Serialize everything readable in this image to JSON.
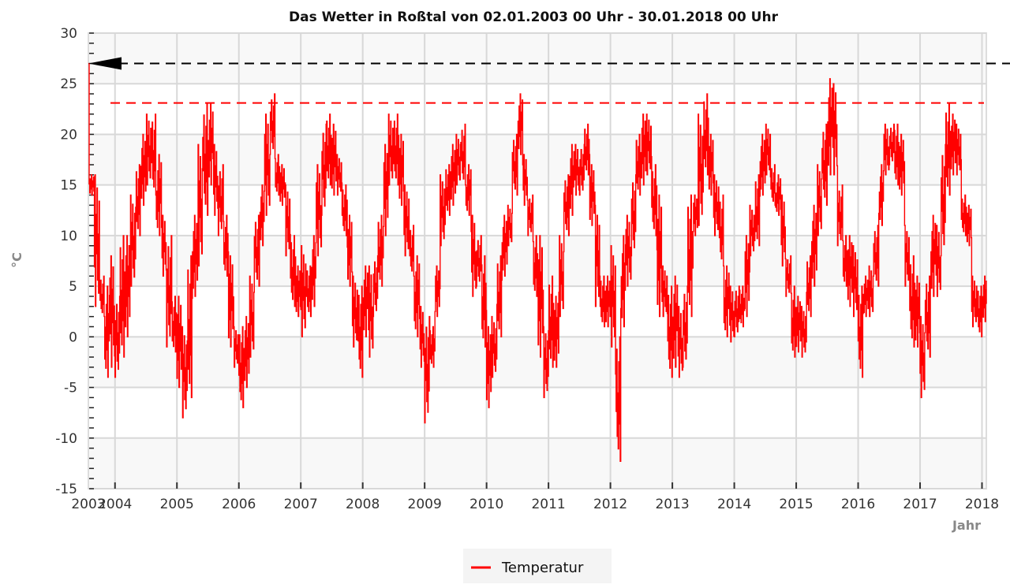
{
  "chart_data": {
    "type": "line",
    "title": "Das Wetter in Roßtal von 02.01.2003 00 Uhr - 30.01.2018 00 Uhr",
    "xlabel": "Jahr",
    "ylabel": "°C",
    "xlim": [
      2003.57,
      2018.07
    ],
    "ylim": [
      -15,
      30
    ],
    "x_ticks": [
      "2003",
      "2004",
      "2005",
      "2006",
      "2007",
      "2008",
      "2009",
      "2010",
      "2011",
      "2012",
      "2013",
      "2014",
      "2015",
      "2016",
      "2017",
      "2018"
    ],
    "y_ticks": [
      30,
      25,
      20,
      15,
      10,
      5,
      0,
      -5,
      -10,
      -15
    ],
    "grid": true,
    "legend": {
      "position": "bottom-center",
      "entries": [
        {
          "label": "Temperatur",
          "color": "#ff0000"
        }
      ]
    },
    "reference_lines": [
      {
        "name": "maximum-marker",
        "value": 27,
        "color": "#000000",
        "style": "dashed-arrow"
      },
      {
        "name": "threshold",
        "value": 23.1,
        "color": "#ff0000",
        "style": "dashed"
      }
    ],
    "series": [
      {
        "name": "Temperatur",
        "color": "#ff0000",
        "start_value": 27,
        "start": "2003-08",
        "monthly_range_note": "[min,max] per month",
        "monthly_min_max": [
          [
            14,
            16
          ],
          [
            3,
            16
          ],
          [
            2,
            6
          ],
          [
            -4,
            5
          ],
          [
            -3,
            8
          ],
          [
            -4,
            4
          ],
          [
            -2,
            10
          ],
          [
            0,
            10
          ],
          [
            5,
            14
          ],
          [
            10,
            17
          ],
          [
            13,
            20
          ],
          [
            15,
            22
          ],
          [
            14,
            22
          ],
          [
            10,
            18
          ],
          [
            6,
            12
          ],
          [
            -1,
            10
          ],
          [
            -1.5,
            4
          ],
          [
            -5,
            4
          ],
          [
            -8,
            1
          ],
          [
            -6,
            8
          ],
          [
            4,
            12
          ],
          [
            7,
            19
          ],
          [
            12,
            23
          ],
          [
            15,
            23
          ],
          [
            12,
            19
          ],
          [
            10,
            17
          ],
          [
            6,
            12
          ],
          [
            -1,
            8
          ],
          [
            -3,
            1
          ],
          [
            -7,
            1
          ],
          [
            -5,
            2
          ],
          [
            -2,
            6
          ],
          [
            5,
            12
          ],
          [
            9,
            15
          ],
          [
            12,
            22
          ],
          [
            18,
            24
          ],
          [
            14,
            18
          ],
          [
            13,
            17
          ],
          [
            8,
            15
          ],
          [
            3,
            10
          ],
          [
            2,
            7
          ],
          [
            0,
            9
          ],
          [
            2,
            7
          ],
          [
            3,
            10
          ],
          [
            8,
            17
          ],
          [
            12,
            21
          ],
          [
            15,
            22
          ],
          [
            14,
            21
          ],
          [
            14,
            18
          ],
          [
            10,
            15
          ],
          [
            5,
            12
          ],
          [
            -1,
            6
          ],
          [
            -4,
            5
          ],
          [
            0,
            7
          ],
          [
            -2,
            7
          ],
          [
            2,
            8
          ],
          [
            5,
            12
          ],
          [
            10,
            19
          ],
          [
            15,
            22
          ],
          [
            15,
            22
          ],
          [
            13,
            20
          ],
          [
            8,
            15
          ],
          [
            6,
            11
          ],
          [
            0,
            8
          ],
          [
            -3,
            3
          ],
          [
            -8.5,
            2
          ],
          [
            -3,
            1
          ],
          [
            2,
            7
          ],
          [
            9,
            16
          ],
          [
            12,
            17
          ],
          [
            13,
            19
          ],
          [
            15,
            20
          ],
          [
            15,
            21
          ],
          [
            12,
            17
          ],
          [
            4,
            12
          ],
          [
            5,
            10
          ],
          [
            -1,
            8
          ],
          [
            -7,
            1
          ],
          [
            -4,
            2
          ],
          [
            0,
            8
          ],
          [
            6,
            12
          ],
          [
            9,
            13
          ],
          [
            14,
            20
          ],
          [
            18,
            24
          ],
          [
            13,
            18
          ],
          [
            10,
            14
          ],
          [
            4,
            10
          ],
          [
            -2,
            10
          ],
          [
            -6,
            1
          ],
          [
            -3,
            6
          ],
          [
            -3,
            4
          ],
          [
            2,
            10
          ],
          [
            10,
            16
          ],
          [
            12,
            19
          ],
          [
            14,
            19
          ],
          [
            14,
            19
          ],
          [
            16,
            21
          ],
          [
            11,
            17
          ],
          [
            3,
            13
          ],
          [
            1,
            6
          ],
          [
            1,
            6
          ],
          [
            -1,
            9
          ],
          [
            -12.3,
            0
          ],
          [
            1,
            10
          ],
          [
            5,
            12
          ],
          [
            8,
            16
          ],
          [
            14,
            20
          ],
          [
            15,
            22
          ],
          [
            16,
            22
          ],
          [
            10,
            17
          ],
          [
            2,
            14
          ],
          [
            2,
            7
          ],
          [
            -4,
            5
          ],
          [
            -3,
            6
          ],
          [
            -4,
            3
          ],
          [
            -3,
            5
          ],
          [
            2,
            14
          ],
          [
            10,
            14
          ],
          [
            11,
            22
          ],
          [
            16,
            24
          ],
          [
            14,
            20
          ],
          [
            10,
            16
          ],
          [
            7,
            14
          ],
          [
            0,
            7
          ],
          [
            -0.5,
            5
          ],
          [
            0,
            5
          ],
          [
            1,
            5
          ],
          [
            2,
            10
          ],
          [
            8,
            13
          ],
          [
            9,
            16
          ],
          [
            14,
            20
          ],
          [
            16,
            21
          ],
          [
            13,
            17
          ],
          [
            12,
            16
          ],
          [
            7,
            14
          ],
          [
            4,
            8
          ],
          [
            -2,
            5
          ],
          [
            -1.5,
            4
          ],
          [
            -2,
            3
          ],
          [
            2,
            8
          ],
          [
            5,
            13
          ],
          [
            10,
            17
          ],
          [
            13,
            21
          ],
          [
            16,
            25.5
          ],
          [
            16,
            25
          ],
          [
            9,
            15
          ],
          [
            5,
            10
          ],
          [
            3,
            10
          ],
          [
            2,
            9
          ],
          [
            -4,
            5
          ],
          [
            2,
            6
          ],
          [
            2,
            7
          ],
          [
            5,
            11
          ],
          [
            11,
            17
          ],
          [
            16,
            21
          ],
          [
            17,
            21
          ],
          [
            15,
            21
          ],
          [
            14,
            20
          ],
          [
            5,
            11
          ],
          [
            -1,
            8
          ],
          [
            -1,
            6
          ],
          [
            -6,
            2
          ],
          [
            -2,
            6
          ],
          [
            4,
            12
          ],
          [
            4,
            11
          ],
          [
            8,
            19
          ],
          [
            14,
            23
          ],
          [
            16,
            22
          ],
          [
            16,
            21
          ],
          [
            10,
            14
          ],
          [
            9,
            13
          ],
          [
            1,
            6
          ],
          [
            0,
            5
          ],
          [
            1.5,
            6
          ]
        ]
      }
    ]
  }
}
